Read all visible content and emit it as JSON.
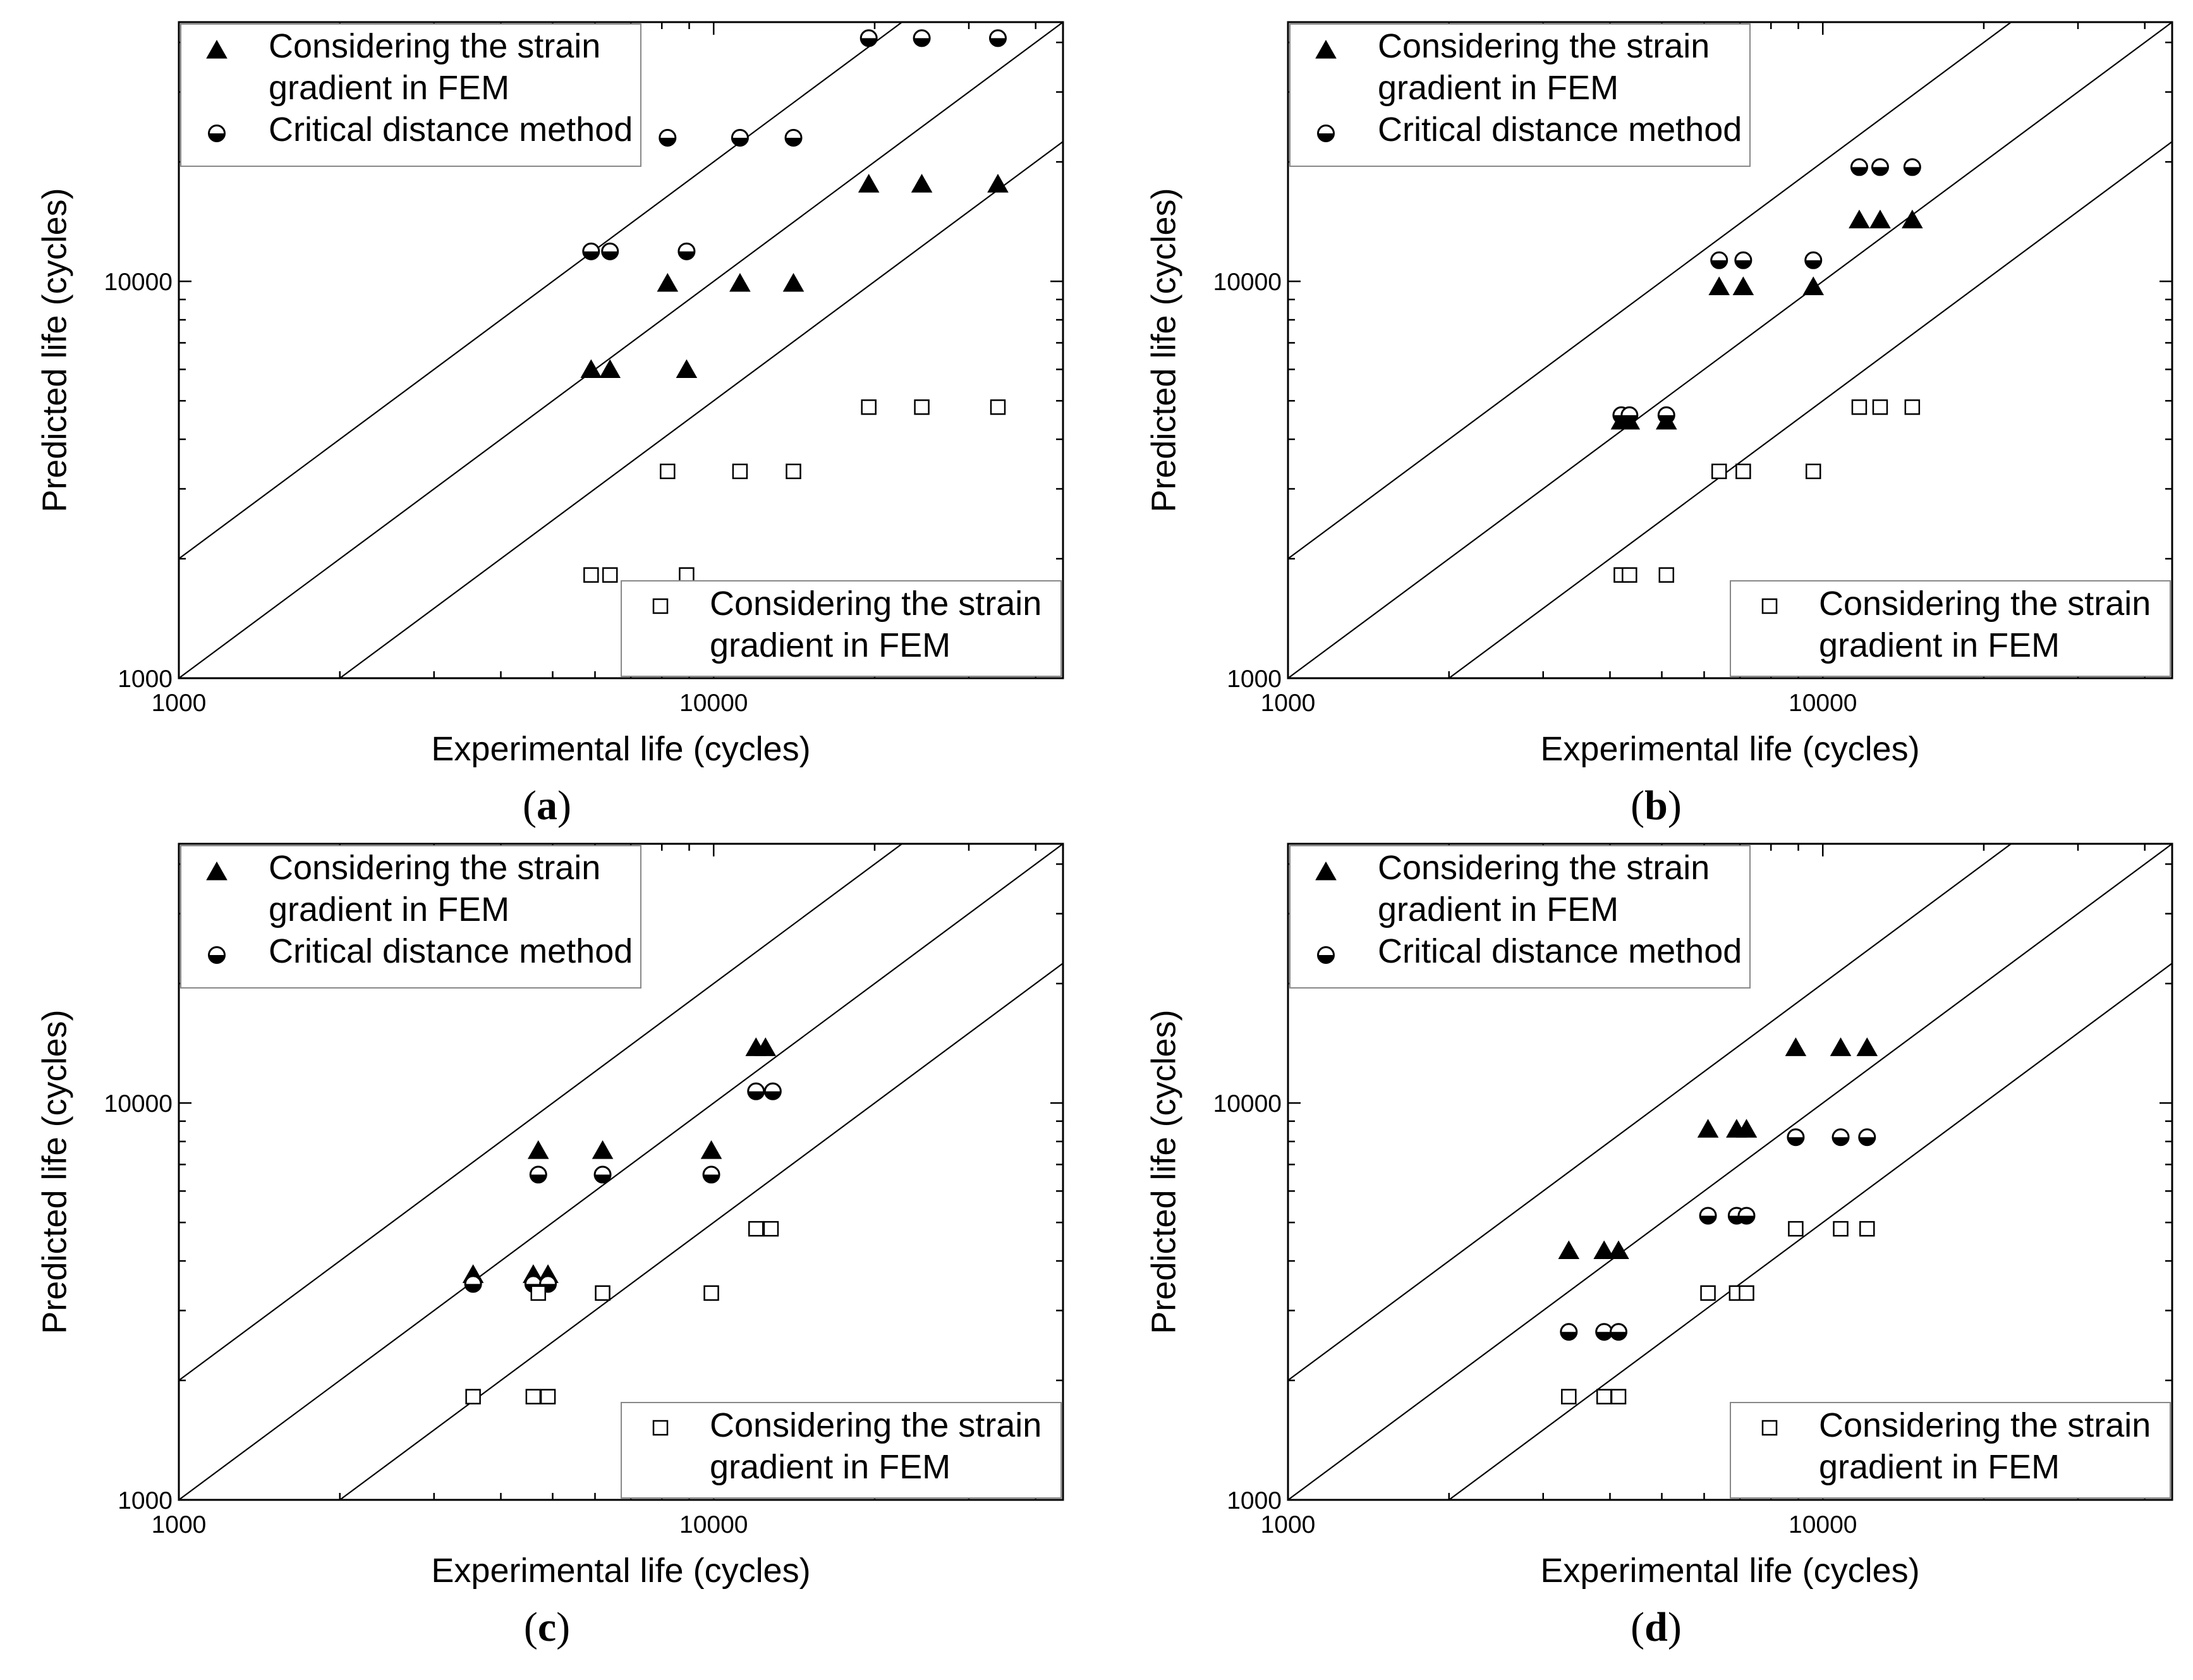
{
  "chart_data": [
    {
      "id": "a",
      "type": "scatter",
      "caption": "a",
      "xlabel": "Experimental life (cycles)",
      "ylabel": "Predicted life (cycles)",
      "xscale": "log",
      "yscale": "log",
      "xlim": [
        1000,
        45000
      ],
      "ylim": [
        1000,
        45000
      ],
      "xticks": [
        1000,
        10000
      ],
      "yticks": [
        1000,
        10000
      ],
      "tick_labels": [
        "1000",
        "10000"
      ],
      "reference_lines": [
        {
          "factor": 2
        },
        {
          "factor": 1
        },
        {
          "factor": 0.5
        }
      ],
      "legend_top": {
        "position": "top-left",
        "entries": [
          {
            "series": 0,
            "lines": [
              "Considering the strain",
              "gradient in FEM"
            ]
          },
          {
            "series": 1,
            "lines": [
              "Critical distance method"
            ]
          }
        ]
      },
      "legend_bottom": {
        "position": "bottom-right",
        "entries": [
          {
            "series": 2,
            "lines": [
              "Considering the strain",
              "gradient in FEM"
            ]
          }
        ]
      },
      "series": [
        {
          "name": "Considering the strain gradient in FEM",
          "marker": "triangle",
          "points": [
            [
              5900,
              6000
            ],
            [
              6400,
              6000
            ],
            [
              8900,
              6000
            ],
            [
              8200,
              9900
            ],
            [
              11200,
              9900
            ],
            [
              14100,
              9900
            ],
            [
              19500,
              17600
            ],
            [
              24500,
              17600
            ],
            [
              34000,
              17600
            ]
          ]
        },
        {
          "name": "Critical distance method",
          "marker": "half-circle",
          "points": [
            [
              5900,
              11900
            ],
            [
              6400,
              11900
            ],
            [
              8900,
              11900
            ],
            [
              8200,
              23000
            ],
            [
              11200,
              23000
            ],
            [
              14100,
              23000
            ],
            [
              19500,
              41000
            ],
            [
              24500,
              41000
            ],
            [
              34000,
              41000
            ]
          ]
        },
        {
          "name": "Considering the strain gradient in FEM",
          "marker": "square",
          "points": [
            [
              5900,
              1820
            ],
            [
              6400,
              1820
            ],
            [
              8900,
              1820
            ],
            [
              8200,
              3320
            ],
            [
              11200,
              3320
            ],
            [
              14100,
              3320
            ],
            [
              19500,
              4820
            ],
            [
              24500,
              4820
            ],
            [
              34000,
              4820
            ]
          ]
        }
      ]
    },
    {
      "id": "b",
      "type": "scatter",
      "caption": "b",
      "xlabel": "Experimental life (cycles)",
      "ylabel": "Predicted life (cycles)",
      "xscale": "log",
      "yscale": "log",
      "xlim": [
        1000,
        45000
      ],
      "ylim": [
        1000,
        45000
      ],
      "xticks": [
        1000,
        10000
      ],
      "yticks": [
        1000,
        10000
      ],
      "tick_labels": [
        "1000",
        "10000"
      ],
      "reference_lines": [
        {
          "factor": 2
        },
        {
          "factor": 1
        },
        {
          "factor": 0.5
        }
      ],
      "legend_top": {
        "position": "top-left",
        "entries": [
          {
            "series": 0,
            "lines": [
              "Considering the strain",
              "gradient in FEM"
            ]
          },
          {
            "series": 1,
            "lines": [
              "Critical distance method"
            ]
          }
        ]
      },
      "legend_bottom": {
        "position": "bottom-right",
        "entries": [
          {
            "series": 2,
            "lines": [
              "Considering the strain",
              "gradient in FEM"
            ]
          }
        ]
      },
      "series": [
        {
          "name": "Considering the strain gradient in FEM",
          "marker": "triangle",
          "points": [
            [
              4200,
              4450
            ],
            [
              4350,
              4450
            ],
            [
              5100,
              4450
            ],
            [
              6400,
              9700
            ],
            [
              7100,
              9700
            ],
            [
              9600,
              9700
            ],
            [
              11700,
              14300
            ],
            [
              12800,
              14300
            ],
            [
              14700,
              14300
            ]
          ]
        },
        {
          "name": "Critical distance method",
          "marker": "half-circle",
          "points": [
            [
              4200,
              4600
            ],
            [
              4350,
              4600
            ],
            [
              5100,
              4600
            ],
            [
              6400,
              11300
            ],
            [
              7100,
              11300
            ],
            [
              9600,
              11300
            ],
            [
              11700,
              19400
            ],
            [
              12800,
              19400
            ],
            [
              14700,
              19400
            ]
          ]
        },
        {
          "name": "Considering the strain gradient in FEM",
          "marker": "square",
          "points": [
            [
              4200,
              1820
            ],
            [
              4350,
              1820
            ],
            [
              5100,
              1820
            ],
            [
              6400,
              3320
            ],
            [
              7100,
              3320
            ],
            [
              9600,
              3320
            ],
            [
              11700,
              4820
            ],
            [
              12800,
              4820
            ],
            [
              14700,
              4820
            ]
          ]
        }
      ]
    },
    {
      "id": "c",
      "type": "scatter",
      "caption": "c",
      "xlabel": "Experimental life (cycles)",
      "ylabel": "Predicted life (cycles)",
      "xscale": "log",
      "yscale": "log",
      "xlim": [
        1000,
        45000
      ],
      "ylim": [
        1000,
        45000
      ],
      "xticks": [
        1000,
        10000
      ],
      "yticks": [
        1000,
        10000
      ],
      "tick_labels": [
        "1000",
        "10000"
      ],
      "reference_lines": [
        {
          "factor": 2
        },
        {
          "factor": 1
        },
        {
          "factor": 0.5
        }
      ],
      "legend_top": {
        "position": "top-left",
        "entries": [
          {
            "series": 0,
            "lines": [
              "Considering the strain",
              "gradient in FEM"
            ]
          },
          {
            "series": 1,
            "lines": [
              "Critical distance method"
            ]
          }
        ]
      },
      "legend_bottom": {
        "position": "bottom-right",
        "entries": [
          {
            "series": 2,
            "lines": [
              "Considering the strain",
              "gradient in FEM"
            ]
          }
        ]
      },
      "series": [
        {
          "name": "Considering the strain gradient in FEM",
          "marker": "triangle",
          "points": [
            [
              3550,
              3700
            ],
            [
              4600,
              3700
            ],
            [
              4900,
              3700
            ],
            [
              4700,
              7600
            ],
            [
              6200,
              7600
            ],
            [
              9900,
              7600
            ],
            [
              12000,
              13800
            ],
            [
              12500,
              13800
            ]
          ]
        },
        {
          "name": "Critical distance method",
          "marker": "half-circle",
          "points": [
            [
              3550,
              3500
            ],
            [
              4600,
              3500
            ],
            [
              4900,
              3500
            ],
            [
              4700,
              6600
            ],
            [
              6200,
              6600
            ],
            [
              9900,
              6600
            ],
            [
              12000,
              10700
            ],
            [
              12900,
              10700
            ]
          ]
        },
        {
          "name": "Considering the strain gradient in FEM",
          "marker": "square",
          "points": [
            [
              3550,
              1820
            ],
            [
              4600,
              1820
            ],
            [
              4900,
              1820
            ],
            [
              4700,
              3320
            ],
            [
              6200,
              3320
            ],
            [
              9900,
              3320
            ],
            [
              12000,
              4820
            ],
            [
              12800,
              4820
            ]
          ]
        }
      ]
    },
    {
      "id": "d",
      "type": "scatter",
      "caption": "d",
      "xlabel": "Experimental life (cycles)",
      "ylabel": "Predicted life (cycles)",
      "xscale": "log",
      "yscale": "log",
      "xlim": [
        1000,
        45000
      ],
      "ylim": [
        1000,
        45000
      ],
      "xticks": [
        1000,
        10000
      ],
      "yticks": [
        1000,
        10000
      ],
      "tick_labels": [
        "1000",
        "10000"
      ],
      "reference_lines": [
        {
          "factor": 2
        },
        {
          "factor": 1
        },
        {
          "factor": 0.5
        }
      ],
      "legend_top": {
        "position": "top-left",
        "entries": [
          {
            "series": 0,
            "lines": [
              "Considering the strain",
              "gradient in FEM"
            ]
          },
          {
            "series": 1,
            "lines": [
              "Critical distance method"
            ]
          }
        ]
      },
      "legend_bottom": {
        "position": "bottom-right",
        "entries": [
          {
            "series": 2,
            "lines": [
              "Considering the strain",
              "gradient in FEM"
            ]
          }
        ]
      },
      "series": [
        {
          "name": "Considering the strain gradient in FEM",
          "marker": "triangle",
          "points": [
            [
              3350,
              4250
            ],
            [
              3900,
              4250
            ],
            [
              4150,
              4250
            ],
            [
              6100,
              8600
            ],
            [
              6900,
              8600
            ],
            [
              7200,
              8600
            ],
            [
              8900,
              13800
            ],
            [
              10800,
              13800
            ],
            [
              12100,
              13800
            ]
          ]
        },
        {
          "name": "Critical distance method",
          "marker": "half-circle",
          "points": [
            [
              3350,
              2650
            ],
            [
              3900,
              2650
            ],
            [
              4150,
              2650
            ],
            [
              6100,
              5200
            ],
            [
              6900,
              5200
            ],
            [
              7200,
              5200
            ],
            [
              8900,
              8200
            ],
            [
              10800,
              8200
            ],
            [
              12100,
              8200
            ]
          ]
        },
        {
          "name": "Considering the strain gradient in FEM",
          "marker": "square",
          "points": [
            [
              3350,
              1820
            ],
            [
              3900,
              1820
            ],
            [
              4150,
              1820
            ],
            [
              6100,
              3320
            ],
            [
              6900,
              3320
            ],
            [
              7200,
              3320
            ],
            [
              8900,
              4820
            ],
            [
              10800,
              4820
            ],
            [
              12100,
              4820
            ]
          ]
        }
      ]
    }
  ]
}
